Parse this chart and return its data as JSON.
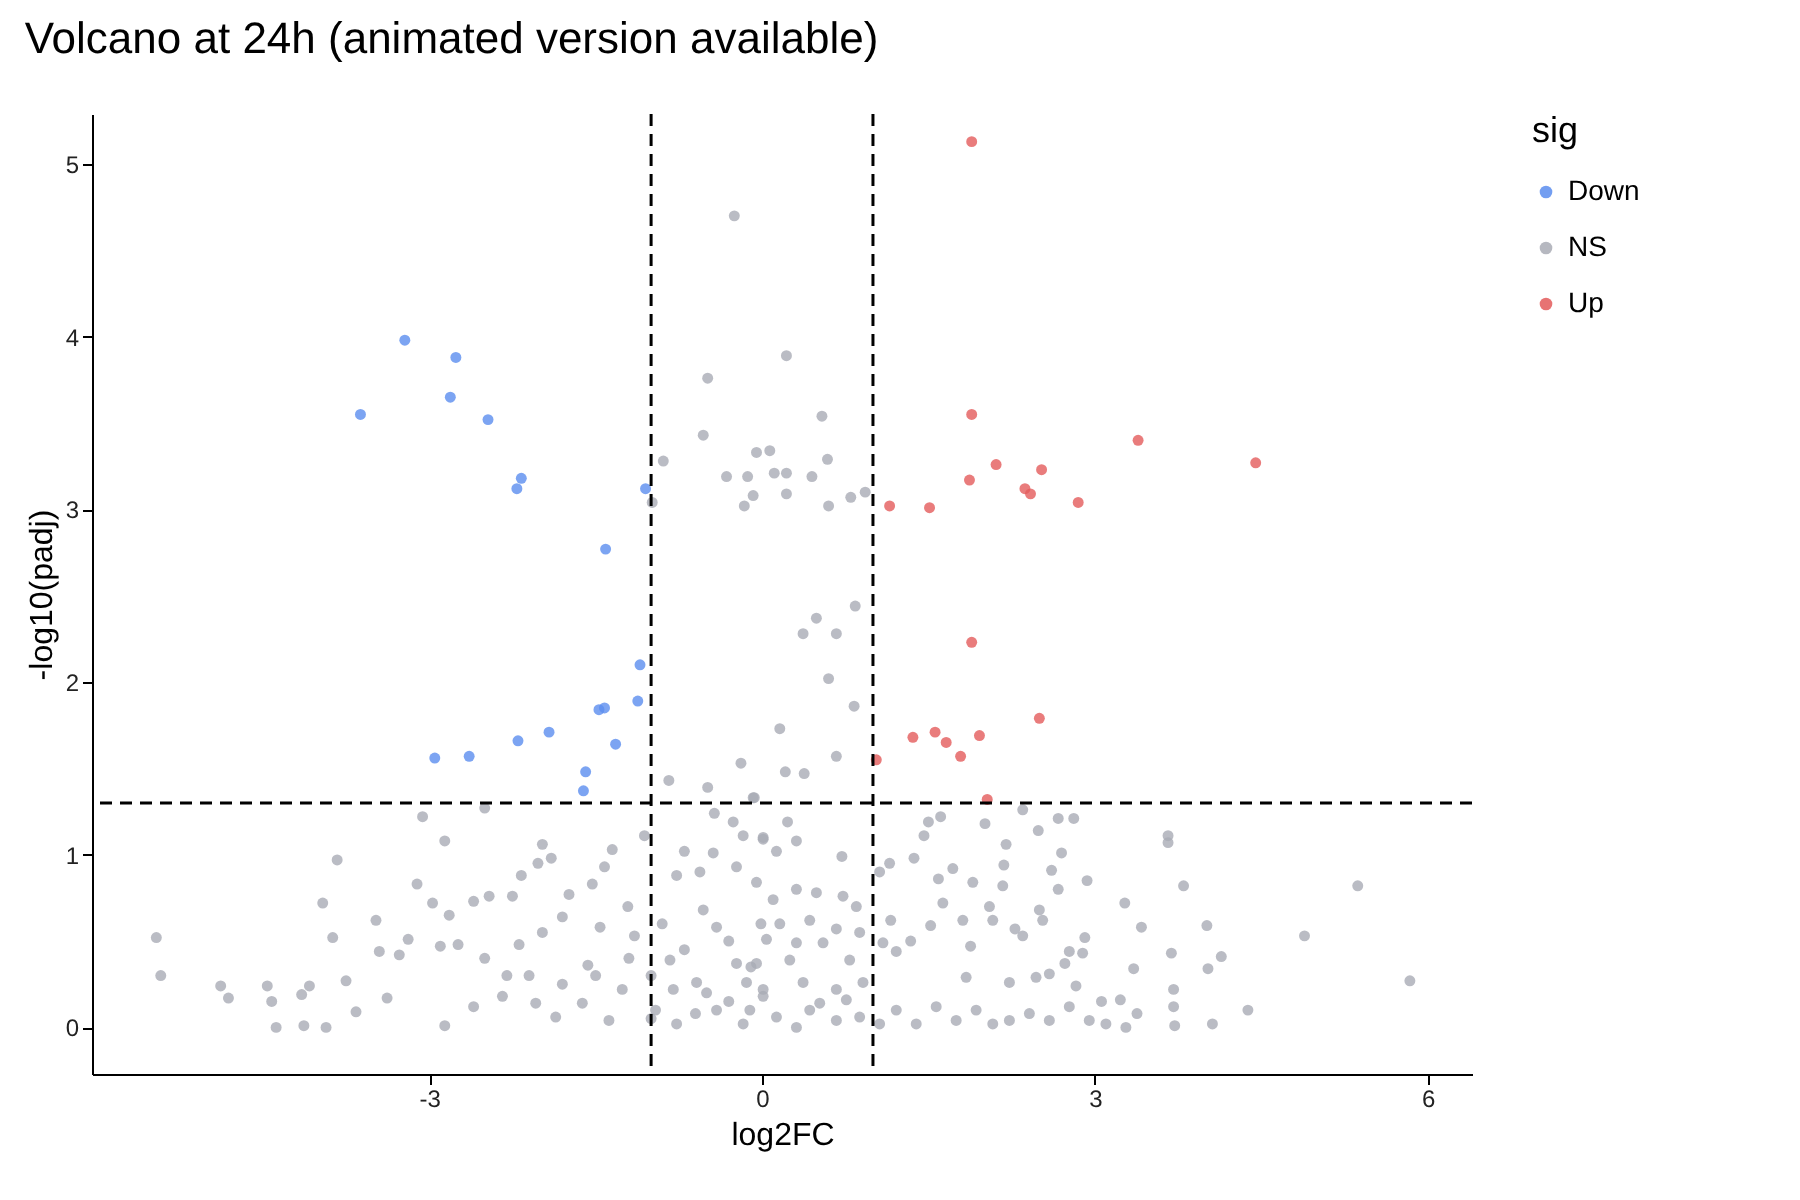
{
  "chart_data": {
    "type": "scatter",
    "title": "Volcano at 24h (animated version available)",
    "xlabel": "log2FC",
    "ylabel": "-log10(padj)",
    "legend_title": "sig",
    "legend": "right",
    "grid": false,
    "marker": "circle",
    "xlim": [
      -6.04,
      6.4
    ],
    "ylim": [
      -0.27,
      5.29
    ],
    "xticks": [
      -3,
      0,
      3,
      6
    ],
    "yticks": [
      0,
      1,
      2,
      3,
      4,
      5
    ],
    "ref_lines": [
      {
        "axis": "x",
        "value": -1,
        "color": "#000000",
        "line_style": "dashed"
      },
      {
        "axis": "x",
        "value": 1,
        "color": "#000000",
        "line_style": "dashed"
      },
      {
        "axis": "y",
        "value": 1.3,
        "color": "#000000",
        "line_style": "dashed"
      }
    ],
    "series": [
      {
        "name": "Down",
        "color": "#5b8def",
        "x": [
          -3.22,
          -2.76,
          -2.81,
          -3.62,
          -2.47,
          -2.17,
          -2.21,
          -1.05,
          -1.41,
          -1.1,
          -1.12,
          -1.47,
          -1.42,
          -1.92,
          -2.2,
          -1.32,
          -2.64,
          -2.95,
          -1.59,
          -1.61
        ],
        "values": [
          3.98,
          3.88,
          3.65,
          3.55,
          3.52,
          3.18,
          3.12,
          3.12,
          2.77,
          2.1,
          1.89,
          1.84,
          1.85,
          1.71,
          1.66,
          1.64,
          1.57,
          1.56,
          1.48,
          1.37
        ]
      },
      {
        "name": "NS",
        "color": "#a9abb5",
        "x": [
          0.22,
          -0.49,
          0.54,
          -0.53,
          -0.89,
          -0.05,
          0.07,
          0.59,
          -0.32,
          -0.13,
          0.11,
          0.22,
          0.45,
          -0.08,
          0.22,
          -0.16,
          0.6,
          0.8,
          0.93,
          -0.99,
          0.84,
          0.49,
          0.37,
          0.67,
          0.6,
          0.83,
          0.16,
          -0.19,
          0.67,
          0.21,
          0.38,
          -0.84,
          -0.49,
          -0.25,
          -0.08,
          -2.5,
          -3.06,
          -2.86,
          -3.83,
          -5.46,
          -5.42,
          -4.88,
          -4.81,
          -4.38,
          -4.13,
          -3.93,
          -4.46,
          -4.42,
          -4.15,
          -4.08,
          -3.96,
          -3.87,
          -3.75,
          -3.66,
          -3.48,
          -3.45,
          -3.38,
          -3.27,
          -3.19,
          -3.11,
          -2.97,
          -2.9,
          -2.82,
          -2.86,
          -2.74,
          -2.6,
          -2.46,
          -2.5,
          -2.25,
          -2.17,
          -2.02,
          -1.9,
          -1.98,
          -1.74,
          -1.53,
          -1.42,
          -1.35,
          -1.06,
          -2.19,
          -1.98,
          -1.8,
          -1.57,
          -1.46,
          -1.21,
          -1.15,
          -2.34,
          -2.04,
          -1.86,
          -1.62,
          -1.38,
          -1.26,
          -0.96,
          -0.77,
          -0.59,
          -0.41,
          -0.17,
          0.01,
          -0.9,
          -0.77,
          -0.7,
          -0.56,
          -0.44,
          -0.43,
          -0.26,
          -0.23,
          -0.05,
          -0.41,
          -0.23,
          -0.01,
          -0.53,
          -0.83,
          -0.17,
          0.01,
          -0.07,
          0.01,
          0.23,
          0.31,
          0.13,
          0.72,
          1.06,
          1.15,
          1.37,
          1.5,
          1.61,
          1.46,
          2.01,
          2.35,
          2.2,
          2.49,
          2.67,
          2.81,
          2.7,
          2.61,
          2.18,
          1.72,
          1.59,
          1.9,
          2.17,
          2.67,
          2.93,
          3.66,
          3.66,
          3.8,
          3.27,
          5.37,
          3.42,
          4.01,
          4.89,
          5.84,
          3.69,
          4.14,
          4.02,
          3.35,
          3.71,
          3.71,
          4.38,
          4.06,
          3.72,
          3.28,
          3.38,
          3.23,
          3.06,
          2.91,
          2.89,
          2.77,
          2.73,
          2.5,
          2.53,
          2.35,
          2.28,
          2.05,
          2.08,
          1.81,
          1.88,
          1.63,
          1.52,
          1.34,
          1.21,
          1.09,
          1.16,
          1.84,
          2.23,
          2.47,
          2.59,
          2.83,
          2.77,
          2.59,
          2.41,
          2.23,
          2.08,
          1.93,
          1.75,
          1.57,
          1.39,
          1.21,
          1.06,
          2.95,
          3.1,
          0.1,
          0.31,
          0.49,
          0.73,
          0.85,
          0.16,
          0.43,
          0.67,
          0.88,
          -0.05,
          0.25,
          0.55,
          0.79,
          0.01,
          0.37,
          0.67,
          0.91,
          -0.11,
          0.13,
          0.43,
          0.67,
          0.88,
          0.31,
          0.52,
          0.76,
          -0.14,
          0.04,
          0.31,
          -1.0,
          -0.7,
          -0.5,
          -0.3,
          -1.2,
          -0.6,
          -0.3,
          -1.5,
          -1.8,
          -2.1,
          -2.6,
          -2.3,
          -1.0,
          -0.1,
          -0.8
        ],
        "values": [
          3.89,
          3.76,
          3.54,
          3.43,
          3.28,
          3.33,
          3.34,
          3.29,
          3.19,
          3.19,
          3.21,
          3.21,
          3.19,
          3.08,
          3.09,
          3.02,
          3.02,
          3.07,
          3.1,
          3.04,
          2.44,
          2.37,
          2.28,
          2.28,
          2.02,
          1.86,
          1.73,
          1.53,
          1.57,
          1.48,
          1.47,
          1.43,
          1.39,
          4.7,
          1.33,
          1.27,
          1.22,
          1.08,
          0.97,
          0.52,
          0.3,
          0.24,
          0.17,
          0.0,
          0.01,
          0.0,
          0.24,
          0.15,
          0.19,
          0.24,
          0.72,
          0.52,
          0.27,
          0.09,
          0.62,
          0.44,
          0.17,
          0.42,
          0.51,
          0.83,
          0.72,
          0.47,
          0.65,
          0.01,
          0.48,
          0.73,
          0.76,
          0.4,
          0.76,
          0.88,
          0.95,
          0.98,
          1.06,
          0.77,
          0.83,
          0.93,
          1.03,
          1.11,
          0.48,
          0.55,
          0.64,
          0.36,
          0.58,
          0.7,
          0.53,
          0.18,
          0.14,
          0.06,
          0.14,
          0.04,
          0.22,
          0.1,
          0.02,
          0.26,
          0.1,
          0.02,
          0.18,
          0.6,
          0.88,
          1.02,
          0.9,
          1.01,
          1.24,
          1.19,
          0.93,
          0.84,
          0.58,
          0.37,
          0.6,
          0.68,
          0.39,
          1.11,
          1.09,
          1.33,
          1.1,
          1.19,
          1.08,
          1.02,
          0.99,
          0.9,
          0.95,
          0.98,
          1.19,
          1.22,
          1.11,
          1.18,
          1.26,
          1.06,
          1.14,
          1.21,
          1.21,
          1.01,
          0.91,
          0.94,
          0.92,
          0.86,
          0.84,
          0.82,
          0.8,
          0.85,
          1.11,
          1.07,
          0.82,
          0.72,
          0.82,
          0.58,
          0.59,
          0.53,
          0.27,
          0.43,
          0.41,
          0.34,
          0.34,
          0.22,
          0.12,
          0.1,
          0.02,
          0.01,
          0.0,
          0.08,
          0.16,
          0.15,
          0.52,
          0.43,
          0.44,
          0.37,
          0.68,
          0.62,
          0.53,
          0.57,
          0.7,
          0.62,
          0.62,
          0.47,
          0.72,
          0.59,
          0.5,
          0.44,
          0.49,
          0.62,
          0.29,
          0.26,
          0.29,
          0.31,
          0.24,
          0.12,
          0.04,
          0.08,
          0.04,
          0.02,
          0.1,
          0.04,
          0.12,
          0.02,
          0.1,
          0.02,
          0.04,
          0.02,
          0.74,
          0.8,
          0.78,
          0.76,
          0.7,
          0.6,
          0.62,
          0.57,
          0.55,
          0.37,
          0.39,
          0.49,
          0.39,
          0.22,
          0.26,
          0.22,
          0.26,
          0.1,
          0.06,
          0.1,
          0.04,
          0.06,
          0.0,
          0.14,
          0.16,
          0.26,
          0.51,
          0.49,
          0.3,
          0.45,
          0.2,
          0.5,
          0.4,
          0.08,
          0.15,
          0.3,
          0.25,
          0.3,
          0.12,
          0.3,
          0.05,
          0.35,
          0.22
        ]
      },
      {
        "name": "Up",
        "color": "#e35b5b",
        "x": [
          1.89,
          1.89,
          3.39,
          4.45,
          2.11,
          2.52,
          1.87,
          2.37,
          2.42,
          2.85,
          1.15,
          1.51,
          1.89,
          2.5,
          1.56,
          1.36,
          1.96,
          1.66,
          1.79,
          1.03,
          2.03
        ],
        "values": [
          5.13,
          3.55,
          3.4,
          3.27,
          3.26,
          3.23,
          3.17,
          3.12,
          3.09,
          3.04,
          3.02,
          3.01,
          2.23,
          1.79,
          1.71,
          1.68,
          1.69,
          1.65,
          1.57,
          1.55,
          1.32
        ]
      }
    ]
  }
}
